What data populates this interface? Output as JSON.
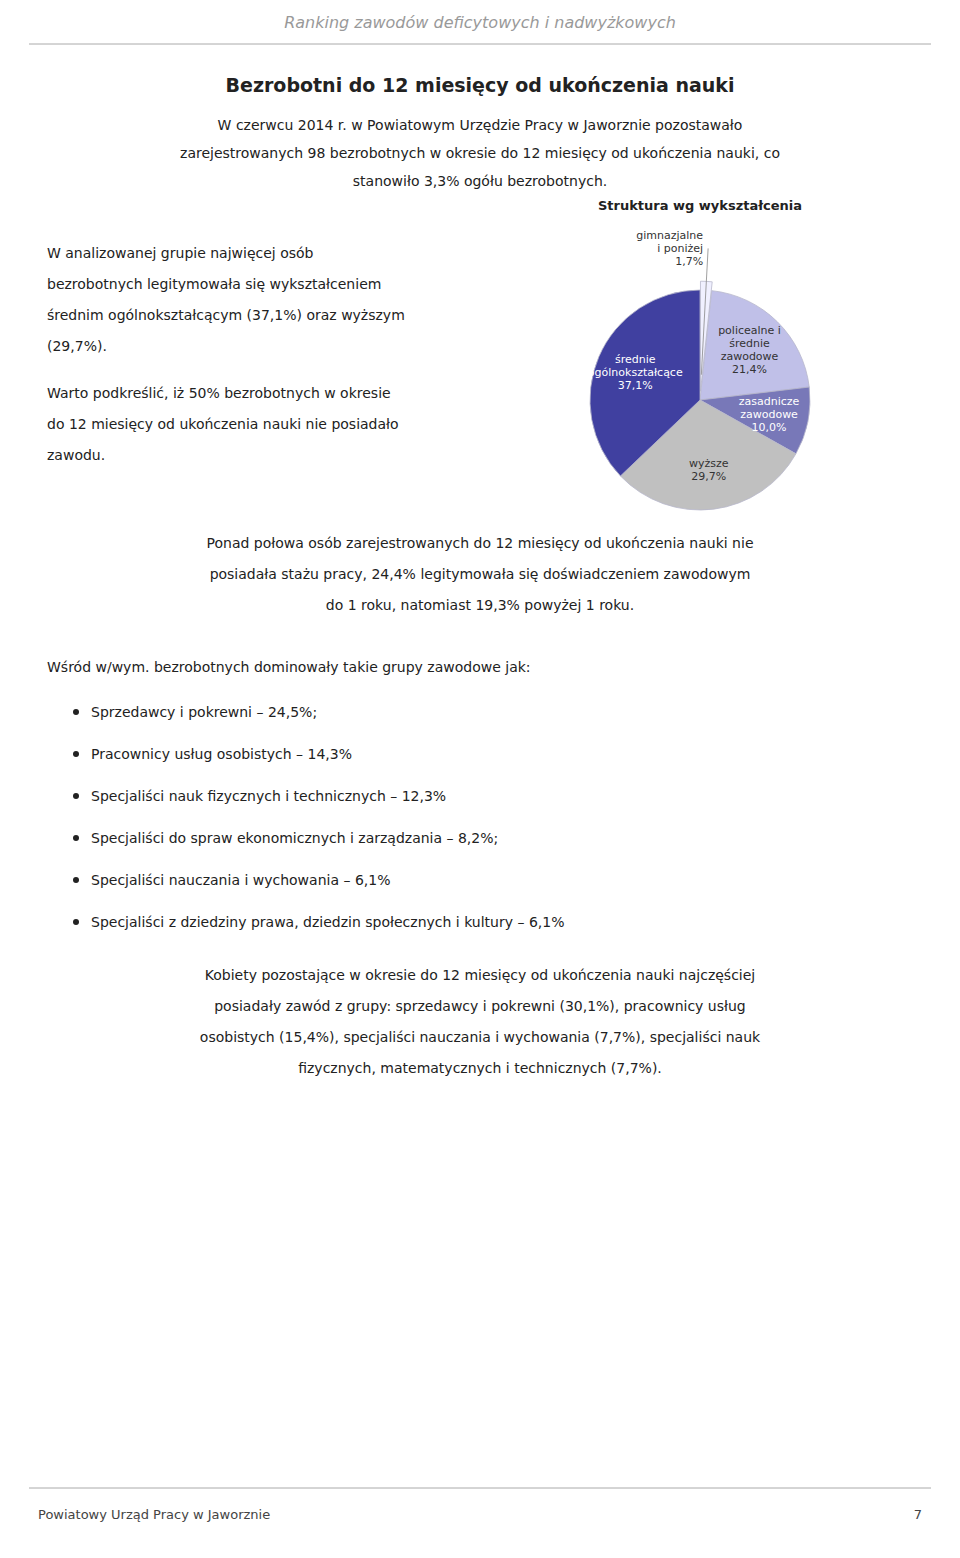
{
  "page_title": "Ranking zawodów deficytowych i nadwyżkowych",
  "main_title": "Bezrobotni do 12 miesięcy od ukończenia nauki",
  "paragraph1": [
    "W czerwcu 2014 r. w Powiatowym Urzędzie Pracy w Jaworznie pozostawało",
    "zarejestrowanych 98 bezrobotnych w okresie do 12 miesięcy od ukończenia nauki, co",
    "stanowiło 3,3% ogółu bezrobotnych."
  ],
  "paragraph2": [
    "W analizowanej grupie najwięcej osób",
    "bezrobotnych legitymowała się wykształceniem",
    "średnim ogólnokształcącym (37,1%) oraz wyższym",
    "(29,7%)."
  ],
  "paragraph3": [
    "Warto podkreślić, iż 50% bezrobotnych w okresie",
    "do 12 miesięcy od ukończenia nauki nie posiadało",
    "zawodu."
  ],
  "paragraph4": [
    "Ponad połowa osób zarejestrowanych do 12 miesięcy od ukończenia nauki nie",
    "posiadała stażu pracy, 24,4% legitymowała się doświadczeniem zawodowym",
    "do 1 roku, natomiast 19,3% powyżej 1 roku."
  ],
  "paragraph5_title": "Wśród w/wym. bezrobotnych dominowały takie grupy zawodowe jak:",
  "bullet_points": [
    "Sprzedawcy i pokrewni – 24,5%;",
    "Pracownicy usług osobistych – 14,3%",
    "Specjaliści nauk fizycznych i technicznych – 12,3%",
    "Specjaliści do spraw ekonomicznych i zarządzania – 8,2%;",
    "Specjaliści nauczania i wychowania – 6,1%",
    "Specjaliści z dziedziny prawa, dziedzin społecznych i kultury – 6,1%"
  ],
  "paragraph6": [
    "Kobiety pozostające w okresie do 12 miesięcy od ukończenia nauki najczęściej",
    "posiadały zawód z grupy: sprzedawcy i pokrewni (30,1%), pracownicy usług",
    "osobistych (15,4%), specjaliści nauczania i wychowania (7,7%), specjaliści nauk",
    "fizycznych, matematycznych i technicznych (7,7%)."
  ],
  "footer_left": "Powiatowy Urząd Pracy w Jaworznie",
  "footer_right": "7",
  "chart_data": {
    "type": "pie",
    "title": "Struktura wg wykształcenia",
    "categories": [
      "gimnazjalne\ni poniżej",
      "policealne i\nśrednie\nzawodowe",
      "zasadnicze\nzawodowe",
      "wyższe",
      "średnie\nogólnokształcące"
    ],
    "values": [
      1.7,
      21.4,
      10.0,
      29.7,
      37.1
    ],
    "value_labels": [
      "1,7%",
      "21,4%",
      "10,0%",
      "29,7%",
      "37,1%"
    ],
    "colors": [
      "#f0f0ff",
      "#c0c0e8",
      "#7878b8",
      "#c0c0c0",
      "#4040a0"
    ],
    "data_labels": true
  }
}
